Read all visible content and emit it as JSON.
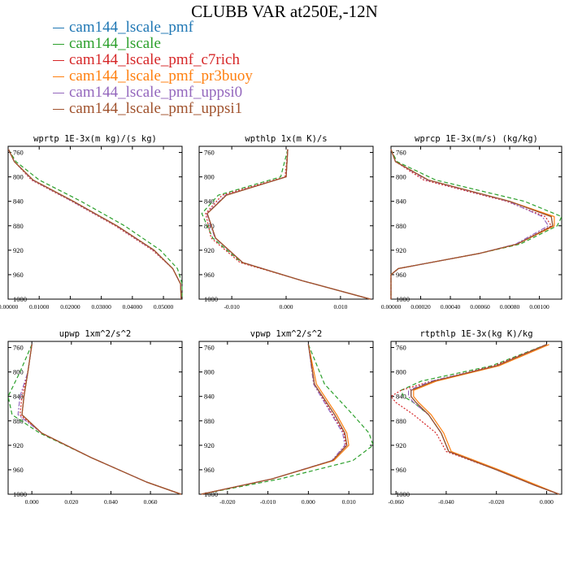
{
  "title": "CLUBB VAR at250E,-12N",
  "legend": [
    {
      "label": "cam144_lscale_pmf",
      "color": "#1f77b4"
    },
    {
      "label": "cam144_lscale",
      "color": "#2ca02c"
    },
    {
      "label": "cam144_lscale_pmf_c7rich",
      "color": "#d62728"
    },
    {
      "label": "cam144_lscale_pmf_pr3buoy",
      "color": "#ff7f0e"
    },
    {
      "label": "cam144_lscale_pmf_uppsi0",
      "color": "#9467bd"
    },
    {
      "label": "cam144_lscale_pmf_uppsi1",
      "color": "#a0522d"
    }
  ],
  "chart_data": [
    {
      "type": "line",
      "title": "wprtp  1E-3x(m kg)/(s kg)",
      "xlim": [
        0.0,
        0.056
      ],
      "ylim": [
        1000,
        750
      ],
      "xticks": [
        0.0,
        0.01,
        0.02,
        0.03,
        0.04,
        0.05
      ],
      "xtick_labels": [
        "0.00000",
        "0.01000",
        "0.02000",
        "0.03000",
        "0.04000",
        "0.05000"
      ],
      "yticks": [
        760,
        800,
        840,
        880,
        920,
        960,
        1000
      ],
      "y": [
        755,
        775,
        805,
        840,
        880,
        920,
        950,
        975,
        1000
      ],
      "series": [
        {
          "color": "#1f77b4",
          "dash": "solid",
          "x": [
            0.0001,
            0.002,
            0.008,
            0.021,
            0.035,
            0.047,
            0.053,
            0.0555,
            0.0557
          ]
        },
        {
          "color": "#2ca02c",
          "dash": "dash",
          "x": [
            0.0001,
            0.0025,
            0.01,
            0.0235,
            0.0375,
            0.049,
            0.0545,
            0.056,
            0.056
          ]
        },
        {
          "color": "#d62728",
          "dash": "dot",
          "x": [
            0.0001,
            0.002,
            0.0075,
            0.0205,
            0.0345,
            0.0465,
            0.053,
            0.0555,
            0.0557
          ]
        },
        {
          "color": "#ff7f0e",
          "dash": "solid",
          "x": [
            0.0001,
            0.002,
            0.008,
            0.021,
            0.035,
            0.047,
            0.053,
            0.0555,
            0.0557
          ]
        },
        {
          "color": "#9467bd",
          "dash": "dashdot",
          "x": [
            0.0001,
            0.002,
            0.0078,
            0.0207,
            0.0348,
            0.0468,
            0.053,
            0.0555,
            0.0557
          ]
        },
        {
          "color": "#a0522d",
          "dash": "solid",
          "x": [
            0.0001,
            0.002,
            0.008,
            0.021,
            0.035,
            0.047,
            0.053,
            0.0555,
            0.0557
          ]
        }
      ]
    },
    {
      "type": "line",
      "title": "wpthlp  1x(m K)/s",
      "xlim": [
        -0.016,
        0.016
      ],
      "ylim": [
        1000,
        750
      ],
      "xticks": [
        -0.01,
        0.0,
        0.01
      ],
      "xtick_labels": [
        "-0.010",
        "0.000",
        "0.010"
      ],
      "yticks": [
        760,
        800,
        840,
        880,
        920,
        960,
        1000
      ],
      "y": [
        755,
        800,
        830,
        860,
        900,
        940,
        970,
        1000
      ],
      "series": [
        {
          "color": "#1f77b4",
          "dash": "solid",
          "x": [
            0.0003,
            0.0,
            -0.011,
            -0.0145,
            -0.013,
            -0.008,
            0.003,
            0.0155
          ]
        },
        {
          "color": "#2ca02c",
          "dash": "dash",
          "x": [
            0.0003,
            -0.001,
            -0.0125,
            -0.0155,
            -0.0135,
            -0.0082,
            0.003,
            0.0155
          ]
        },
        {
          "color": "#d62728",
          "dash": "dot",
          "x": [
            0.0003,
            -0.0002,
            -0.0118,
            -0.0148,
            -0.0138,
            -0.0085,
            0.003,
            0.0155
          ]
        },
        {
          "color": "#ff7f0e",
          "dash": "solid",
          "x": [
            0.0003,
            0.0,
            -0.011,
            -0.0145,
            -0.013,
            -0.008,
            0.003,
            0.0155
          ]
        },
        {
          "color": "#9467bd",
          "dash": "dashdot",
          "x": [
            0.0003,
            0.0,
            -0.0112,
            -0.0146,
            -0.0131,
            -0.008,
            0.003,
            0.0155
          ]
        },
        {
          "color": "#a0522d",
          "dash": "solid",
          "x": [
            0.0003,
            0.0,
            -0.011,
            -0.0145,
            -0.013,
            -0.008,
            0.003,
            0.0155
          ]
        }
      ]
    },
    {
      "type": "line",
      "title": "wprcp  1E-3x(m/s) (kg/kg)",
      "xlim": [
        0.0,
        0.00115
      ],
      "ylim": [
        1000,
        750
      ],
      "xticks": [
        0.0,
        0.0002,
        0.0004,
        0.0006,
        0.0008,
        0.001
      ],
      "xtick_labels": [
        "0.00000",
        "0.00020",
        "0.00040",
        "0.00060",
        "0.00080",
        "0.00100"
      ],
      "yticks": [
        760,
        800,
        840,
        880,
        920,
        960,
        1000
      ],
      "y": [
        755,
        775,
        805,
        840,
        865,
        880,
        910,
        925,
        950,
        960,
        1000
      ],
      "series": [
        {
          "color": "#1f77b4",
          "dash": "solid",
          "x": [
            0.0,
            3e-05,
            0.00025,
            0.0008,
            0.00108,
            0.00109,
            0.00085,
            0.0006,
            5e-05,
            0.0,
            0.0
          ]
        },
        {
          "color": "#2ca02c",
          "dash": "dash",
          "x": [
            0.0,
            4e-05,
            0.0003,
            0.0009,
            0.00115,
            0.00112,
            0.00087,
            0.0006,
            5e-05,
            0.0,
            0.0
          ]
        },
        {
          "color": "#d62728",
          "dash": "dot",
          "x": [
            0.0,
            3e-05,
            0.00022,
            0.00078,
            0.00104,
            0.00108,
            0.00085,
            0.0006,
            5e-05,
            0.0,
            0.0
          ]
        },
        {
          "color": "#ff7f0e",
          "dash": "solid",
          "x": [
            0.0,
            3e-05,
            0.00025,
            0.0008,
            0.0011,
            0.0011,
            0.00085,
            0.0006,
            5e-05,
            0.0,
            0.0
          ]
        },
        {
          "color": "#9467bd",
          "dash": "dashdot",
          "x": [
            0.0,
            3e-05,
            0.00024,
            0.00079,
            0.00102,
            0.00106,
            0.00084,
            0.0006,
            5e-05,
            0.0,
            0.0
          ]
        },
        {
          "color": "#a0522d",
          "dash": "solid",
          "x": [
            0.0,
            3e-05,
            0.00025,
            0.0008,
            0.00108,
            0.00109,
            0.00085,
            0.0006,
            5e-05,
            0.0,
            0.0
          ]
        }
      ]
    },
    {
      "type": "line",
      "title": "upwp  1xm^2/s^2",
      "xlim": [
        -0.012,
        0.076
      ],
      "ylim": [
        1000,
        750
      ],
      "xticks": [
        0.0,
        0.02,
        0.04,
        0.06
      ],
      "xtick_labels": [
        "0.000",
        "0.020",
        "0.040",
        "0.060"
      ],
      "yticks": [
        760,
        800,
        840,
        880,
        920,
        960,
        1000
      ],
      "y": [
        755,
        800,
        840,
        870,
        900,
        940,
        980,
        1000
      ],
      "series": [
        {
          "color": "#1f77b4",
          "dash": "solid",
          "x": [
            0.0,
            -0.002,
            -0.004,
            -0.005,
            0.005,
            0.03,
            0.058,
            0.0755
          ]
        },
        {
          "color": "#2ca02c",
          "dash": "dash",
          "x": [
            0.0,
            -0.006,
            -0.012,
            -0.01,
            0.004,
            0.03,
            0.058,
            0.0755
          ]
        },
        {
          "color": "#d62728",
          "dash": "dot",
          "x": [
            0.0,
            -0.002,
            -0.005,
            -0.006,
            0.005,
            0.03,
            0.058,
            0.0755
          ]
        },
        {
          "color": "#ff7f0e",
          "dash": "solid",
          "x": [
            0.0,
            -0.002,
            -0.004,
            -0.005,
            0.005,
            0.03,
            0.058,
            0.0755
          ]
        },
        {
          "color": "#9467bd",
          "dash": "dashdot",
          "x": [
            0.0,
            -0.002,
            -0.006,
            -0.007,
            0.005,
            0.03,
            0.058,
            0.0755
          ]
        },
        {
          "color": "#a0522d",
          "dash": "solid",
          "x": [
            0.0,
            -0.002,
            -0.004,
            -0.005,
            0.005,
            0.03,
            0.058,
            0.0755
          ]
        }
      ]
    },
    {
      "type": "line",
      "title": "vpwp  1xm^2/s^2",
      "xlim": [
        -0.027,
        0.016
      ],
      "ylim": [
        1000,
        750
      ],
      "xticks": [
        -0.02,
        -0.01,
        0.0,
        0.01
      ],
      "xtick_labels": [
        "-0.020",
        "-0.010",
        "0.000",
        "0.010"
      ],
      "yticks": [
        760,
        800,
        840,
        880,
        920,
        960,
        1000
      ],
      "y": [
        755,
        820,
        870,
        900,
        920,
        945,
        975,
        1000
      ],
      "series": [
        {
          "color": "#1f77b4",
          "dash": "solid",
          "x": [
            0.0,
            0.0015,
            0.0065,
            0.009,
            0.0095,
            0.006,
            -0.009,
            -0.0265
          ]
        },
        {
          "color": "#2ca02c",
          "dash": "dash",
          "x": [
            0.0,
            0.004,
            0.011,
            0.015,
            0.016,
            0.011,
            -0.007,
            -0.0265
          ]
        },
        {
          "color": "#d62728",
          "dash": "dot",
          "x": [
            0.0,
            0.0015,
            0.006,
            0.0088,
            0.0093,
            0.006,
            -0.009,
            -0.0265
          ]
        },
        {
          "color": "#ff7f0e",
          "dash": "solid",
          "x": [
            0.0,
            0.002,
            0.007,
            0.0095,
            0.01,
            0.0063,
            -0.009,
            -0.0265
          ]
        },
        {
          "color": "#9467bd",
          "dash": "dashdot",
          "x": [
            0.0,
            0.0013,
            0.0058,
            0.0085,
            0.009,
            0.0058,
            -0.009,
            -0.0265
          ]
        },
        {
          "color": "#a0522d",
          "dash": "solid",
          "x": [
            0.0,
            0.0015,
            0.0065,
            0.009,
            0.0095,
            0.006,
            -0.009,
            -0.0265
          ]
        }
      ]
    },
    {
      "type": "line",
      "title": "rtpthlp  1E-3x(kg K)/kg",
      "xlim": [
        -0.062,
        0.006
      ],
      "ylim": [
        1000,
        750
      ],
      "xticks": [
        -0.06,
        -0.04,
        -0.02,
        0.0
      ],
      "xtick_labels": [
        "-0.060",
        "-0.040",
        "-0.020",
        "0.000"
      ],
      "yticks": [
        760,
        800,
        840,
        880,
        920,
        960,
        1000
      ],
      "y": [
        755,
        790,
        815,
        830,
        840,
        850,
        870,
        900,
        930,
        960,
        985,
        1000
      ],
      "series": [
        {
          "color": "#1f77b4",
          "dash": "solid",
          "x": [
            0.0,
            -0.02,
            -0.045,
            -0.054,
            -0.054,
            -0.052,
            -0.047,
            -0.042,
            -0.039,
            -0.02,
            -0.005,
            0.005
          ]
        },
        {
          "color": "#2ca02c",
          "dash": "dash",
          "x": [
            0.0,
            -0.022,
            -0.05,
            -0.058,
            -0.057,
            -0.053,
            -0.047,
            -0.042,
            -0.039,
            -0.02,
            -0.005,
            0.005
          ]
        },
        {
          "color": "#d62728",
          "dash": "dot",
          "x": [
            0.0,
            -0.021,
            -0.046,
            -0.058,
            -0.062,
            -0.06,
            -0.053,
            -0.044,
            -0.04,
            -0.02,
            -0.005,
            0.005
          ]
        },
        {
          "color": "#ff7f0e",
          "dash": "solid",
          "x": [
            0.001,
            -0.019,
            -0.044,
            -0.053,
            -0.053,
            -0.051,
            -0.046,
            -0.041,
            -0.038,
            -0.019,
            -0.004,
            0.005
          ]
        },
        {
          "color": "#9467bd",
          "dash": "dashdot",
          "x": [
            0.0,
            -0.02,
            -0.046,
            -0.055,
            -0.055,
            -0.053,
            -0.047,
            -0.042,
            -0.039,
            -0.02,
            -0.005,
            0.005
          ]
        },
        {
          "color": "#a0522d",
          "dash": "solid",
          "x": [
            0.0,
            -0.02,
            -0.045,
            -0.054,
            -0.054,
            -0.052,
            -0.047,
            -0.042,
            -0.039,
            -0.02,
            -0.005,
            0.005
          ]
        }
      ]
    }
  ]
}
